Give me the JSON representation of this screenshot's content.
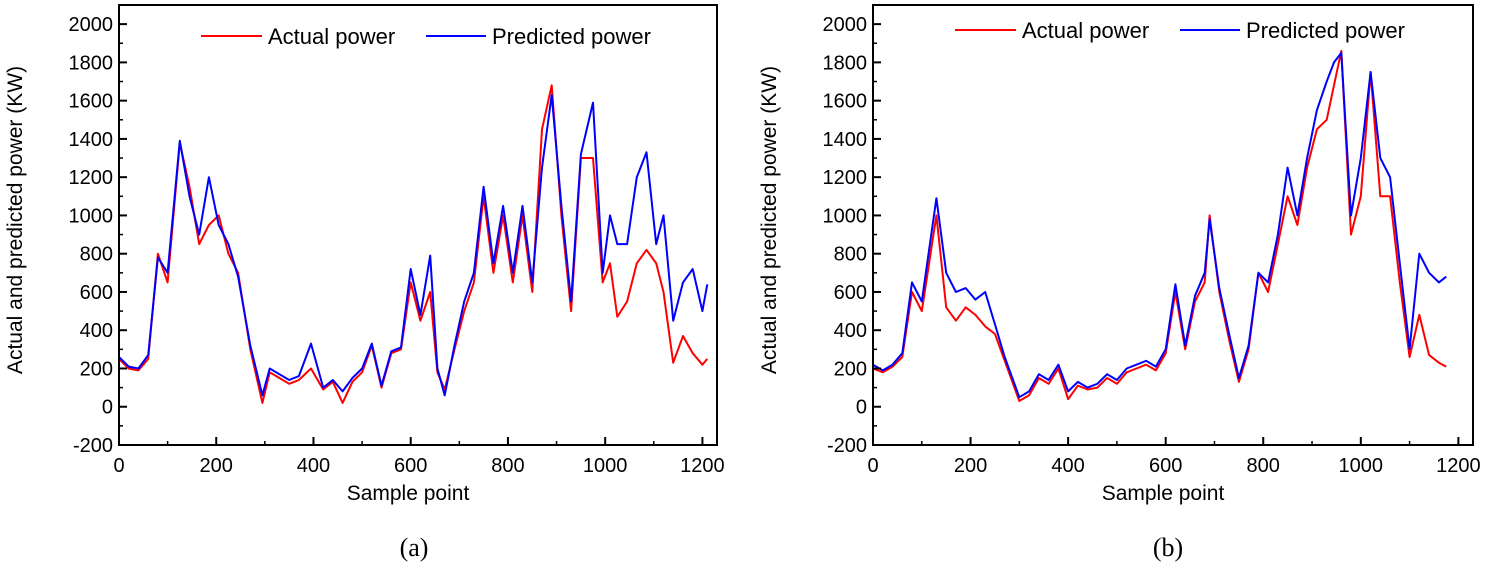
{
  "figure": {
    "captions": [
      "(a)",
      "(b)"
    ]
  },
  "colors": {
    "actual": "#ff0000",
    "predicted": "#0000ff",
    "axis": "#000000"
  },
  "chart_data": [
    {
      "id": "a",
      "type": "line",
      "title": "",
      "xlabel": "Sample point",
      "ylabel": "Actual and predicted power (KW)",
      "xlim": [
        0,
        1230
      ],
      "ylim": [
        -200,
        2100
      ],
      "xticks": [
        0,
        200,
        400,
        600,
        800,
        1000,
        1200
      ],
      "yticks": [
        -200,
        0,
        200,
        400,
        600,
        800,
        1000,
        1200,
        1400,
        1600,
        1800,
        2000
      ],
      "legend": {
        "placement": "top-right",
        "entries": [
          "Actual power",
          "Predicted power"
        ]
      },
      "series": [
        {
          "name": "Actual power",
          "color": "#ff0000",
          "x": [
            0,
            20,
            40,
            60,
            80,
            100,
            125,
            145,
            165,
            185,
            205,
            225,
            245,
            270,
            295,
            310,
            330,
            350,
            370,
            395,
            420,
            440,
            460,
            480,
            500,
            520,
            540,
            560,
            580,
            600,
            620,
            640,
            655,
            670,
            690,
            710,
            730,
            750,
            770,
            790,
            810,
            830,
            850,
            870,
            890,
            910,
            930,
            950,
            975,
            995,
            1010,
            1025,
            1045,
            1065,
            1085,
            1105,
            1120,
            1140,
            1160,
            1180,
            1200,
            1210
          ],
          "y": [
            250,
            200,
            190,
            250,
            800,
            650,
            1380,
            1150,
            850,
            950,
            1000,
            800,
            700,
            300,
            20,
            180,
            150,
            120,
            140,
            200,
            90,
            130,
            20,
            130,
            180,
            320,
            100,
            280,
            300,
            650,
            450,
            600,
            180,
            90,
            300,
            500,
            650,
            1100,
            700,
            1000,
            650,
            1000,
            600,
            1450,
            1680,
            1000,
            500,
            1300,
            1300,
            650,
            750,
            470,
            550,
            750,
            820,
            750,
            600,
            230,
            370,
            280,
            220,
            250
          ]
        },
        {
          "name": "Predicted power",
          "color": "#0000ff",
          "x": [
            0,
            20,
            40,
            60,
            80,
            100,
            125,
            145,
            165,
            185,
            205,
            225,
            245,
            270,
            295,
            310,
            330,
            350,
            370,
            395,
            420,
            440,
            460,
            480,
            500,
            520,
            540,
            560,
            580,
            600,
            620,
            640,
            655,
            670,
            690,
            710,
            730,
            750,
            770,
            790,
            810,
            830,
            850,
            870,
            890,
            910,
            930,
            950,
            975,
            995,
            1010,
            1025,
            1045,
            1065,
            1085,
            1105,
            1120,
            1140,
            1160,
            1180,
            1200,
            1210
          ],
          "y": [
            260,
            210,
            200,
            270,
            780,
            700,
            1390,
            1100,
            900,
            1200,
            950,
            850,
            680,
            320,
            60,
            200,
            170,
            140,
            160,
            330,
            100,
            140,
            80,
            150,
            200,
            330,
            110,
            290,
            310,
            720,
            480,
            790,
            200,
            60,
            320,
            550,
            700,
            1150,
            750,
            1050,
            700,
            1050,
            650,
            1250,
            1630,
            1050,
            550,
            1320,
            1590,
            700,
            1000,
            850,
            850,
            1200,
            1330,
            850,
            1000,
            450,
            650,
            720,
            500,
            640
          ]
        }
      ]
    },
    {
      "id": "b",
      "type": "line",
      "title": "",
      "xlabel": "Sample point",
      "ylabel": "Actual and predicted power (KW)",
      "xlim": [
        0,
        1230
      ],
      "ylim": [
        -200,
        2100
      ],
      "xticks": [
        0,
        200,
        400,
        600,
        800,
        1000,
        1200
      ],
      "yticks": [
        -200,
        0,
        200,
        400,
        600,
        800,
        1000,
        1200,
        1400,
        1600,
        1800,
        2000
      ],
      "legend": {
        "placement": "top-right",
        "entries": [
          "Actual power",
          "Predicted power"
        ]
      },
      "series": [
        {
          "name": "Actual power",
          "color": "#ff0000",
          "x": [
            0,
            20,
            40,
            60,
            80,
            100,
            130,
            150,
            170,
            190,
            210,
            230,
            250,
            270,
            300,
            320,
            340,
            360,
            380,
            400,
            420,
            440,
            460,
            480,
            500,
            520,
            540,
            560,
            580,
            600,
            620,
            640,
            660,
            680,
            690,
            710,
            730,
            750,
            770,
            790,
            810,
            830,
            850,
            870,
            890,
            910,
            930,
            945,
            960,
            980,
            1000,
            1020,
            1040,
            1060,
            1080,
            1100,
            1120,
            1140,
            1160,
            1175
          ],
          "y": [
            200,
            180,
            210,
            260,
            600,
            500,
            1000,
            520,
            450,
            520,
            480,
            420,
            380,
            240,
            30,
            60,
            150,
            120,
            200,
            40,
            110,
            90,
            100,
            150,
            120,
            180,
            200,
            220,
            190,
            280,
            600,
            300,
            550,
            650,
            1000,
            600,
            350,
            130,
            300,
            700,
            600,
            850,
            1100,
            950,
            1250,
            1450,
            1500,
            1680,
            1860,
            900,
            1100,
            1750,
            1100,
            1100,
            650,
            260,
            480,
            270,
            230,
            210
          ]
        },
        {
          "name": "Predicted power",
          "color": "#0000ff",
          "x": [
            0,
            20,
            40,
            60,
            80,
            100,
            130,
            150,
            170,
            190,
            210,
            230,
            250,
            270,
            300,
            320,
            340,
            360,
            380,
            400,
            420,
            440,
            460,
            480,
            500,
            520,
            540,
            560,
            580,
            600,
            620,
            640,
            660,
            680,
            690,
            710,
            730,
            750,
            770,
            790,
            810,
            830,
            850,
            870,
            890,
            910,
            930,
            945,
            960,
            980,
            1000,
            1020,
            1040,
            1060,
            1080,
            1100,
            1120,
            1140,
            1160,
            1175
          ],
          "y": [
            220,
            190,
            220,
            280,
            650,
            550,
            1090,
            700,
            600,
            620,
            560,
            600,
            430,
            260,
            50,
            80,
            170,
            140,
            220,
            80,
            130,
            100,
            120,
            170,
            140,
            200,
            220,
            240,
            210,
            300,
            640,
            320,
            580,
            700,
            980,
            620,
            380,
            150,
            320,
            700,
            650,
            900,
            1250,
            1000,
            1300,
            1550,
            1700,
            1800,
            1850,
            1000,
            1300,
            1750,
            1300,
            1200,
            750,
            300,
            800,
            700,
            650,
            680
          ]
        }
      ]
    }
  ]
}
